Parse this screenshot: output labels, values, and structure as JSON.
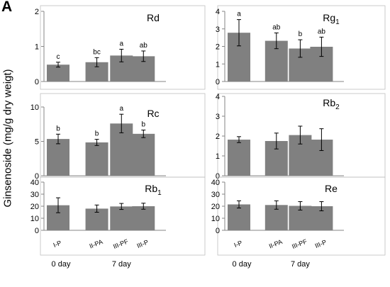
{
  "panel_label": "A",
  "y_axis_label": "Ginsenoside  (mg/g dry weigt)",
  "colors": {
    "bar": "#808080",
    "axis": "#868686",
    "frame": "#bfbfbf",
    "error": "#000000"
  },
  "chart_data": [
    {
      "type": "bar",
      "title": "Rd",
      "title_sub": "",
      "ylim": [
        0,
        2
      ],
      "yticks": [
        0,
        1,
        2
      ],
      "categories": [
        "I-P",
        "II-PA",
        "III-PF",
        "III-P"
      ],
      "values": [
        0.48,
        0.55,
        0.74,
        0.72
      ],
      "errors": [
        0.07,
        0.13,
        0.18,
        0.15
      ],
      "letters": [
        "c",
        "bc",
        "a",
        "ab"
      ]
    },
    {
      "type": "bar",
      "title": "Rg",
      "title_sub": "1",
      "ylim": [
        0,
        4
      ],
      "yticks": [
        0,
        1,
        2,
        3,
        4
      ],
      "categories": [
        "I-P",
        "II-PA",
        "III-PF",
        "III-P"
      ],
      "values": [
        2.78,
        2.32,
        1.88,
        1.98
      ],
      "errors": [
        0.75,
        0.45,
        0.5,
        0.55
      ],
      "letters": [
        "a",
        "ab",
        "b",
        "ab"
      ]
    },
    {
      "type": "bar",
      "title": "Rc",
      "title_sub": "",
      "ylim": [
        0,
        10
      ],
      "yticks": [
        0,
        5,
        10
      ],
      "categories": [
        "I-P",
        "II-PA",
        "III-PF",
        "III-P"
      ],
      "values": [
        5.35,
        4.85,
        7.6,
        6.1
      ],
      "errors": [
        0.7,
        0.45,
        1.35,
        0.55
      ],
      "letters": [
        "b",
        "b",
        "a",
        "b"
      ]
    },
    {
      "type": "bar",
      "title": "Rb",
      "title_sub": "2",
      "ylim": [
        0,
        4
      ],
      "yticks": [
        0,
        1,
        2,
        3,
        4
      ],
      "categories": [
        "I-P",
        "II-PA",
        "III-PF",
        "III-P"
      ],
      "values": [
        1.82,
        1.75,
        2.05,
        1.82
      ],
      "errors": [
        0.15,
        0.4,
        0.45,
        0.55
      ],
      "letters": [
        "",
        "",
        "",
        ""
      ]
    },
    {
      "type": "bar",
      "title": "Rb",
      "title_sub": "1",
      "ylim": [
        0,
        40
      ],
      "yticks": [
        0,
        10,
        20,
        30,
        40
      ],
      "categories": [
        "I-P",
        "II-PA",
        "III-PF",
        "III-P"
      ],
      "values": [
        20.8,
        18.0,
        19.8,
        20.0
      ],
      "errors": [
        6.2,
        3.0,
        2.5,
        2.5
      ],
      "letters": [
        "",
        "",
        "",
        ""
      ],
      "xticklabels": [
        "I-P",
        "II-PA",
        "III-PF",
        "III-P"
      ],
      "xgroups": [
        "0 day",
        "7 day"
      ]
    },
    {
      "type": "bar",
      "title": "Re",
      "title_sub": "",
      "ylim": [
        0,
        40
      ],
      "yticks": [
        0,
        10,
        20,
        30,
        40
      ],
      "categories": [
        "I-P",
        "II-PA",
        "III-PF",
        "III-P"
      ],
      "values": [
        21.5,
        21.0,
        20.3,
        20.0
      ],
      "errors": [
        3.0,
        3.5,
        3.5,
        3.8
      ],
      "letters": [
        "",
        "",
        "",
        ""
      ],
      "xticklabels": [
        "I-P",
        "II-PA",
        "III-PF",
        "III-P"
      ],
      "xgroups": [
        "0 day",
        "7 day"
      ]
    }
  ]
}
